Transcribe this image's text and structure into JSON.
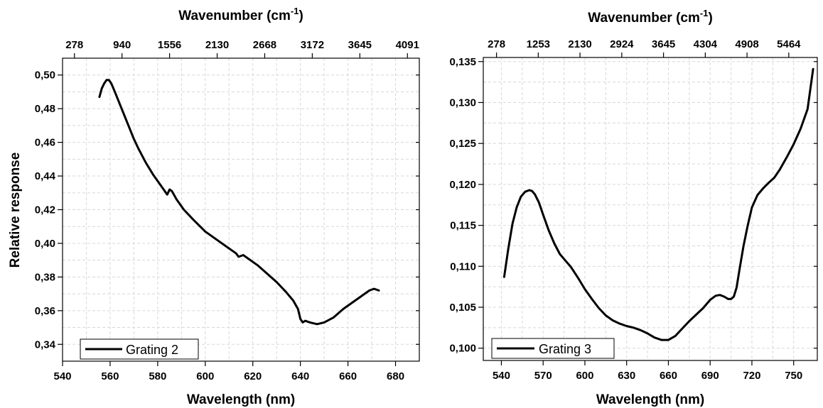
{
  "chart_data": [
    {
      "type": "line",
      "xlabel": "Wavelength (nm)",
      "ylabel": "Relative response",
      "top_axis_label": "Wavenumber (cm⁻¹)",
      "xlim": [
        540,
        690
      ],
      "ylim": [
        0.33,
        0.51
      ],
      "x_ticks": [
        "540",
        "560",
        "580",
        "600",
        "620",
        "640",
        "660",
        "680"
      ],
      "y_ticks": [
        "0,34",
        "0,36",
        "0,38",
        "0,40",
        "0,42",
        "0,44",
        "0,46",
        "0,48",
        "0,50"
      ],
      "top_ticks": [
        "278",
        "940",
        "1556",
        "2130",
        "2668",
        "3172",
        "3645",
        "4091"
      ],
      "grid": true,
      "legend_position": "bottom-left",
      "series": [
        {
          "name": "Grating 2",
          "color": "#000000",
          "x": [
            555.5,
            556.5,
            557.5,
            558.5,
            559.5,
            560.5,
            562,
            564,
            566,
            568,
            570,
            572,
            575,
            578,
            581,
            584,
            585,
            586,
            588,
            591,
            595,
            600,
            605,
            610,
            612,
            613,
            614,
            616,
            619,
            622,
            626,
            630,
            634,
            637,
            639,
            640,
            641,
            642,
            644,
            647,
            650,
            654,
            658,
            662,
            666,
            669,
            671,
            673
          ],
          "y": [
            0.487,
            0.492,
            0.495,
            0.497,
            0.497,
            0.495,
            0.49,
            0.483,
            0.476,
            0.469,
            0.462,
            0.456,
            0.448,
            0.441,
            0.435,
            0.429,
            0.432,
            0.431,
            0.426,
            0.42,
            0.414,
            0.407,
            0.402,
            0.397,
            0.395,
            0.394,
            0.392,
            0.393,
            0.39,
            0.387,
            0.382,
            0.377,
            0.371,
            0.366,
            0.361,
            0.355,
            0.353,
            0.354,
            0.353,
            0.352,
            0.353,
            0.356,
            0.361,
            0.365,
            0.369,
            0.372,
            0.373,
            0.372
          ]
        }
      ]
    },
    {
      "type": "line",
      "xlabel": "Wavelength (nm)",
      "ylabel": "",
      "top_axis_label": "Wavenumber (cm⁻¹)",
      "xlim": [
        527,
        767
      ],
      "ylim": [
        0.0985,
        0.1355
      ],
      "x_ticks": [
        "540",
        "570",
        "600",
        "630",
        "660",
        "690",
        "720",
        "750"
      ],
      "y_ticks": [
        "0,100",
        "0,105",
        "0,110",
        "0,115",
        "0,120",
        "0,125",
        "0,130",
        "0,135"
      ],
      "top_ticks": [
        "278",
        "1253",
        "2130",
        "2924",
        "3645",
        "4304",
        "4908",
        "5464"
      ],
      "grid": true,
      "legend_position": "bottom-left",
      "series": [
        {
          "name": "Grating 3",
          "color": "#000000",
          "x": [
            542,
            545,
            548,
            551,
            554,
            557,
            560,
            562,
            564,
            567,
            570,
            574,
            578,
            582,
            586,
            590,
            595,
            600,
            605,
            610,
            615,
            620,
            625,
            630,
            635,
            640,
            645,
            650,
            655,
            660,
            665,
            670,
            675,
            680,
            685,
            690,
            694,
            697,
            700,
            703,
            705,
            707,
            709,
            711,
            714,
            717,
            720,
            724,
            728,
            732,
            736,
            740,
            745,
            750,
            755,
            760,
            764
          ],
          "y": [
            0.1087,
            0.1122,
            0.1152,
            0.1172,
            0.1185,
            0.1191,
            0.1193,
            0.1192,
            0.1188,
            0.1178,
            0.1163,
            0.1144,
            0.1128,
            0.1115,
            0.1107,
            0.1099,
            0.1086,
            0.1072,
            0.106,
            0.1049,
            0.104,
            0.1034,
            0.103,
            0.1027,
            0.1025,
            0.1022,
            0.1018,
            0.1013,
            0.101,
            0.101,
            0.1015,
            0.1024,
            0.1033,
            0.1041,
            0.1049,
            0.1059,
            0.1064,
            0.1065,
            0.1063,
            0.106,
            0.106,
            0.1063,
            0.1074,
            0.1095,
            0.1125,
            0.115,
            0.1172,
            0.1187,
            0.1195,
            0.1202,
            0.1208,
            0.1218,
            0.1233,
            0.1249,
            0.1268,
            0.1292,
            0.1341
          ]
        }
      ]
    }
  ]
}
